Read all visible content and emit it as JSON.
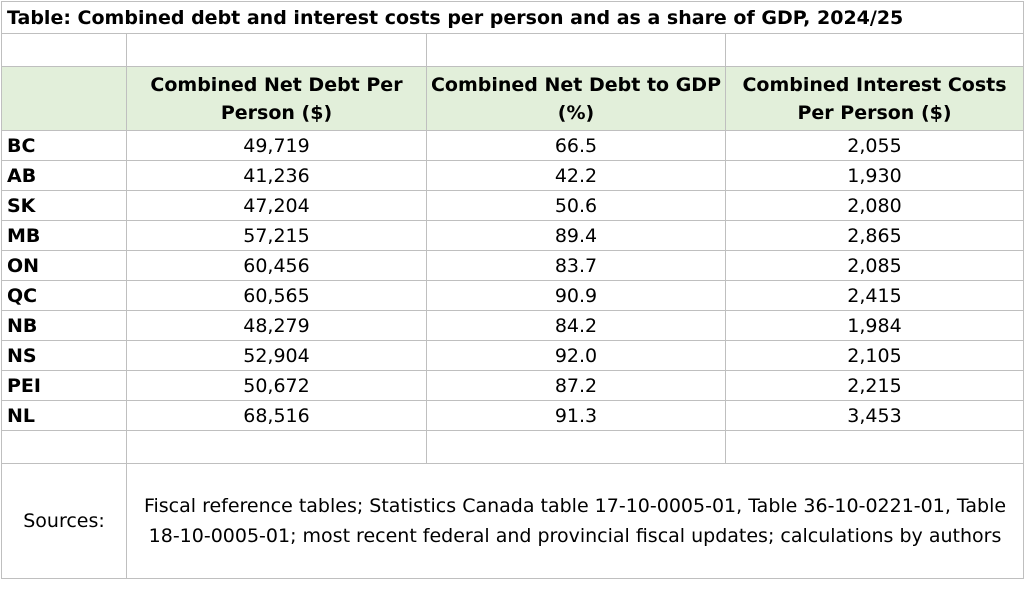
{
  "title": "Table: Combined debt and interest costs per person and as a share of GDP, 2024/25",
  "headers": {
    "col1": "",
    "col2": "Combined Net Debt Per Person ($)",
    "col3": "Combined Net Debt to GDP (%)",
    "col4": "Combined Interest Costs Per Person ($)"
  },
  "rows": [
    {
      "province": "BC",
      "debt_per_person": "49,719",
      "debt_to_gdp": "66.5",
      "interest_per_person": "2,055"
    },
    {
      "province": "AB",
      "debt_per_person": "41,236",
      "debt_to_gdp": "42.2",
      "interest_per_person": "1,930"
    },
    {
      "province": "SK",
      "debt_per_person": "47,204",
      "debt_to_gdp": "50.6",
      "interest_per_person": "2,080"
    },
    {
      "province": "MB",
      "debt_per_person": "57,215",
      "debt_to_gdp": "89.4",
      "interest_per_person": "2,865"
    },
    {
      "province": "ON",
      "debt_per_person": "60,456",
      "debt_to_gdp": "83.7",
      "interest_per_person": "2,085"
    },
    {
      "province": "QC",
      "debt_per_person": "60,565",
      "debt_to_gdp": "90.9",
      "interest_per_person": "2,415"
    },
    {
      "province": "NB",
      "debt_per_person": "48,279",
      "debt_to_gdp": "84.2",
      "interest_per_person": "1,984"
    },
    {
      "province": "NS",
      "debt_per_person": "52,904",
      "debt_to_gdp": "92.0",
      "interest_per_person": "2,105"
    },
    {
      "province": "PEI",
      "debt_per_person": "50,672",
      "debt_to_gdp": "87.2",
      "interest_per_person": "2,215"
    },
    {
      "province": "NL",
      "debt_per_person": "68,516",
      "debt_to_gdp": "91.3",
      "interest_per_person": "3,453"
    }
  ],
  "sources": {
    "label": "Sources:",
    "text": "Fiscal reference tables; Statistics Canada table 17-10-0005-01, Table 36-10-0221-01, Table 18-10-0005-01; most recent federal and provincial fiscal updates; calculations by authors"
  },
  "colors": {
    "header_bg": "#e2efda",
    "grid": "#bfbfbf"
  }
}
